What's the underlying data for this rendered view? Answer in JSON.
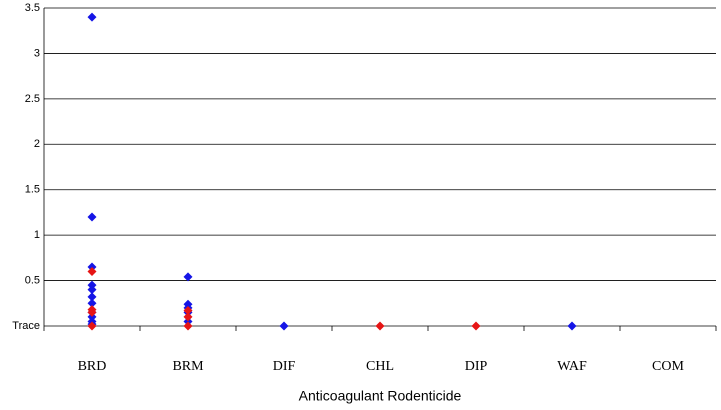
{
  "chart_data": {
    "type": "scatter",
    "x_label": "Anticoagulant Rodenticide",
    "categories": [
      "BRD",
      "BRM",
      "DIF",
      "CHL",
      "DIP",
      "WAF",
      "COM"
    ],
    "ylim": [
      0,
      3.5
    ],
    "yticks": [
      {
        "value": 0,
        "label": "Trace"
      },
      0.5,
      1,
      1.5,
      2,
      2.5,
      3,
      3.5
    ],
    "grid": true,
    "series": [
      {
        "color": "#1515e6",
        "x": [
          "BRD",
          "BRD",
          "BRD",
          "BRD",
          "BRD",
          "BRD",
          "BRD",
          "BRD",
          "BRD",
          "BRD",
          "BRD",
          "BRM",
          "BRM",
          "BRM",
          "BRM",
          "BRM",
          "DIF",
          "WAF"
        ],
        "values": [
          3.4,
          1.2,
          0.65,
          0.45,
          0.4,
          0.32,
          0.25,
          0.15,
          0.1,
          0.05,
          0.02,
          0.54,
          0.24,
          0.2,
          0.15,
          0.05,
          0,
          0
        ]
      },
      {
        "color": "#e61515",
        "x": [
          "BRD",
          "BRD",
          "BRD",
          "BRD",
          "BRM",
          "BRM",
          "BRM",
          "CHL",
          "DIP"
        ],
        "values": [
          0.6,
          0.18,
          0.15,
          0,
          0.17,
          0.1,
          0,
          0,
          0
        ]
      }
    ]
  }
}
